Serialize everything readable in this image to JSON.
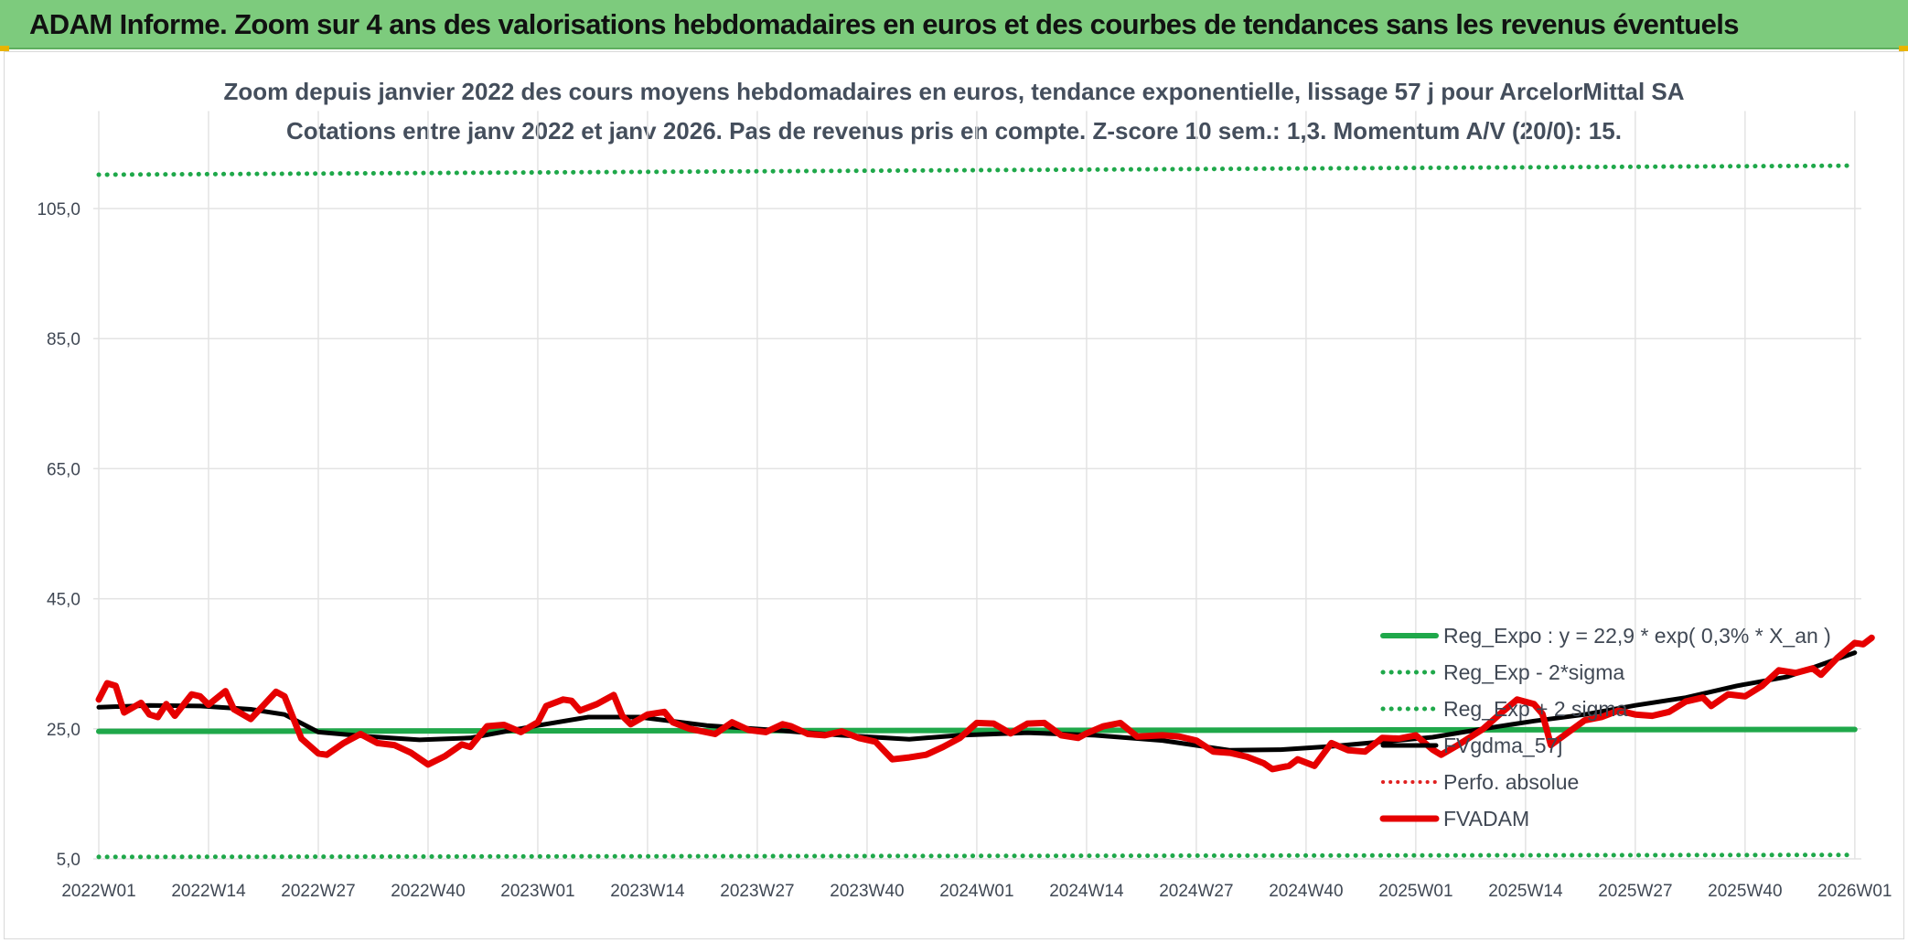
{
  "header": {
    "banner_title": "ADAM Informe. Zoom sur 4 ans des valorisations hebdomadaires en euros et des courbes de tendances sans les revenus éventuels"
  },
  "colors": {
    "banner_bg": "#7dcb7d",
    "reg_expo": "#1fa84a",
    "sigma": "#1fa84a",
    "perfo": "#e02020",
    "fvadam": "#e60000",
    "fvgdma": "#000000",
    "grid": "#e3e3e3"
  },
  "chart_data": {
    "type": "line",
    "title": "Zoom depuis janvier 2022 des cours moyens hebdomadaires en euros, tendance exponentielle, lissage 57 j pour ArcelorMittal SA",
    "subtitle": "Cotations entre janv 2022 et janv 2026. Pas de revenus pris en compte. Z-score 10 sem.: 1,3. Momentum A/V (20/0): 15.",
    "xlabel": "",
    "ylabel": "",
    "ylim": [
      5,
      120
    ],
    "y_ticks": [
      "5,0",
      "25,0",
      "45,0",
      "65,0",
      "85,0",
      "105,0"
    ],
    "y_tick_values": [
      5,
      25,
      45,
      65,
      85,
      105
    ],
    "x_ticks": [
      "2022W01",
      "2022W14",
      "2022W27",
      "2022W40",
      "2023W01",
      "2023W14",
      "2023W27",
      "2023W40",
      "2024W01",
      "2024W14",
      "2024W27",
      "2024W40",
      "2025W01",
      "2025W14",
      "2025W27",
      "2025W40",
      "2026W01"
    ],
    "x_tick_index": [
      0,
      13,
      26,
      39,
      52,
      65,
      78,
      91,
      104,
      117,
      130,
      143,
      156,
      169,
      182,
      195,
      208
    ],
    "n_weeks": 209,
    "grid": true,
    "legend_position": "bottom-right",
    "series": [
      {
        "name": "Reg_Expo : y = 22,9 * exp( 0,3% *  X_an )",
        "style": "solid-thick",
        "values": [
          [
            0,
            24.6
          ],
          [
            208,
            24.9
          ]
        ]
      },
      {
        "name": "Reg_Exp - 2*sigma",
        "style": "dotted",
        "values": [
          [
            0,
            5.3
          ],
          [
            208,
            5.6
          ]
        ]
      },
      {
        "name": "Reg_Exp + 2 sigma",
        "style": "dotted",
        "values": [
          [
            0,
            110.2
          ],
          [
            208,
            111.6
          ]
        ]
      },
      {
        "name": "FVgdma_57j",
        "style": "solid",
        "values": [
          [
            0,
            28.3
          ],
          [
            6,
            28.6
          ],
          [
            12,
            28.5
          ],
          [
            18,
            28.0
          ],
          [
            22,
            27.2
          ],
          [
            26,
            24.5
          ],
          [
            32,
            23.8
          ],
          [
            38,
            23.3
          ],
          [
            44,
            23.6
          ],
          [
            52,
            25.5
          ],
          [
            58,
            26.8
          ],
          [
            64,
            26.8
          ],
          [
            72,
            25.5
          ],
          [
            80,
            24.8
          ],
          [
            88,
            24.0
          ],
          [
            96,
            23.4
          ],
          [
            102,
            24.0
          ],
          [
            110,
            24.4
          ],
          [
            118,
            24.0
          ],
          [
            126,
            23.2
          ],
          [
            134,
            21.7
          ],
          [
            140,
            21.8
          ],
          [
            146,
            22.3
          ],
          [
            152,
            23.0
          ],
          [
            158,
            23.7
          ],
          [
            164,
            25.0
          ],
          [
            170,
            26.2
          ],
          [
            176,
            27.2
          ],
          [
            182,
            28.6
          ],
          [
            188,
            29.8
          ],
          [
            194,
            31.6
          ],
          [
            200,
            33.0
          ],
          [
            208,
            36.7
          ]
        ]
      },
      {
        "name": "Perfo. absolue",
        "style": "dotted",
        "values": []
      },
      {
        "name": "FVADAM",
        "style": "solid-thick",
        "values": [
          [
            0,
            29.5
          ],
          [
            1,
            32.0
          ],
          [
            2,
            31.6
          ],
          [
            3,
            27.5
          ],
          [
            5,
            29.0
          ],
          [
            6,
            27.2
          ],
          [
            7,
            26.8
          ],
          [
            8,
            28.8
          ],
          [
            9,
            27.0
          ],
          [
            11,
            30.3
          ],
          [
            12,
            30.0
          ],
          [
            13,
            28.7
          ],
          [
            15,
            30.8
          ],
          [
            16,
            28.0
          ],
          [
            18,
            26.5
          ],
          [
            21,
            30.7
          ],
          [
            22,
            30.0
          ],
          [
            24,
            23.5
          ],
          [
            26,
            21.2
          ],
          [
            27,
            21.0
          ],
          [
            29,
            22.8
          ],
          [
            31,
            24.2
          ],
          [
            33,
            22.8
          ],
          [
            35,
            22.5
          ],
          [
            37,
            21.3
          ],
          [
            39,
            19.5
          ],
          [
            41,
            20.8
          ],
          [
            43,
            22.6
          ],
          [
            44,
            22.2
          ],
          [
            46,
            25.4
          ],
          [
            48,
            25.6
          ],
          [
            50,
            24.5
          ],
          [
            52,
            26.0
          ],
          [
            53,
            28.5
          ],
          [
            55,
            29.5
          ],
          [
            56,
            29.3
          ],
          [
            57,
            27.8
          ],
          [
            59,
            28.8
          ],
          [
            61,
            30.2
          ],
          [
            62,
            27.0
          ],
          [
            63,
            25.7
          ],
          [
            65,
            27.2
          ],
          [
            67,
            27.6
          ],
          [
            68,
            26.0
          ],
          [
            70,
            25.0
          ],
          [
            73,
            24.2
          ],
          [
            75,
            26.0
          ],
          [
            77,
            24.8
          ],
          [
            79,
            24.5
          ],
          [
            81,
            25.7
          ],
          [
            82,
            25.4
          ],
          [
            84,
            24.2
          ],
          [
            86,
            24.0
          ],
          [
            88,
            24.6
          ],
          [
            90,
            23.6
          ],
          [
            92,
            23.0
          ],
          [
            94,
            20.3
          ],
          [
            96,
            20.6
          ],
          [
            98,
            21.0
          ],
          [
            100,
            22.2
          ],
          [
            102,
            23.6
          ],
          [
            104,
            25.9
          ],
          [
            106,
            25.8
          ],
          [
            108,
            24.3
          ],
          [
            110,
            25.8
          ],
          [
            112,
            25.9
          ],
          [
            114,
            24.0
          ],
          [
            116,
            23.6
          ],
          [
            117,
            24.3
          ],
          [
            119,
            25.4
          ],
          [
            121,
            25.9
          ],
          [
            123,
            23.8
          ],
          [
            126,
            24.0
          ],
          [
            128,
            23.8
          ],
          [
            130,
            23.2
          ],
          [
            132,
            21.5
          ],
          [
            134,
            21.3
          ],
          [
            136,
            20.7
          ],
          [
            138,
            19.7
          ],
          [
            139,
            18.8
          ],
          [
            141,
            19.3
          ],
          [
            142,
            20.3
          ],
          [
            144,
            19.3
          ],
          [
            146,
            22.8
          ],
          [
            148,
            21.7
          ],
          [
            150,
            21.5
          ],
          [
            152,
            23.6
          ],
          [
            154,
            23.5
          ],
          [
            156,
            24.0
          ],
          [
            158,
            21.8
          ],
          [
            159,
            21.0
          ],
          [
            161,
            22.5
          ],
          [
            164,
            25.0
          ],
          [
            166,
            27.3
          ],
          [
            168,
            29.5
          ],
          [
            170,
            28.8
          ],
          [
            171,
            27.3
          ],
          [
            172,
            22.5
          ],
          [
            174,
            24.4
          ],
          [
            176,
            26.3
          ],
          [
            178,
            26.8
          ],
          [
            180,
            27.8
          ],
          [
            182,
            27.2
          ],
          [
            184,
            27.0
          ],
          [
            186,
            27.6
          ],
          [
            188,
            29.2
          ],
          [
            190,
            29.8
          ],
          [
            191,
            28.5
          ],
          [
            193,
            30.3
          ],
          [
            195,
            30.0
          ],
          [
            197,
            31.6
          ],
          [
            199,
            34.0
          ],
          [
            201,
            33.6
          ],
          [
            203,
            34.3
          ],
          [
            204,
            33.3
          ],
          [
            206,
            36.0
          ],
          [
            208,
            38.2
          ],
          [
            209,
            38.0
          ],
          [
            210,
            39.0
          ]
        ]
      }
    ]
  }
}
